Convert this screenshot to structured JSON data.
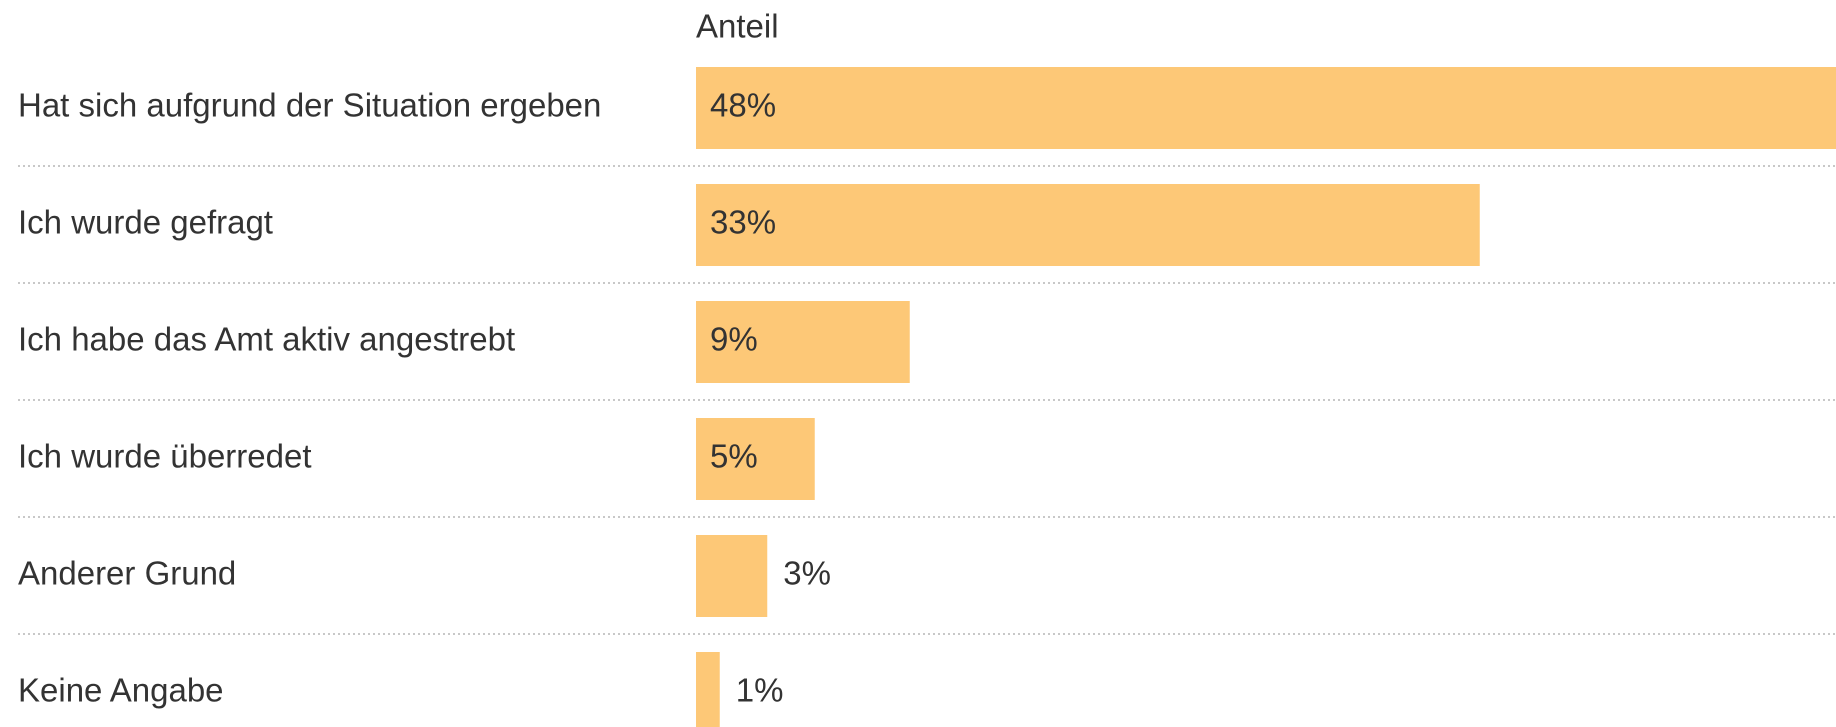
{
  "chart_data": {
    "type": "bar",
    "orientation": "horizontal",
    "column_header": "Anteil",
    "categories": [
      "Hat sich aufgrund der Situation ergeben",
      "Ich wurde gefragt",
      "Ich habe das Amt aktiv angestrebt",
      "Ich wurde überredet",
      "Anderer Grund",
      "Keine Angabe"
    ],
    "values": [
      48,
      33,
      9,
      5,
      3,
      1
    ],
    "value_labels": [
      "48%",
      "33%",
      "9%",
      "5%",
      "3%",
      "1%"
    ],
    "color": "#fdc877"
  }
}
